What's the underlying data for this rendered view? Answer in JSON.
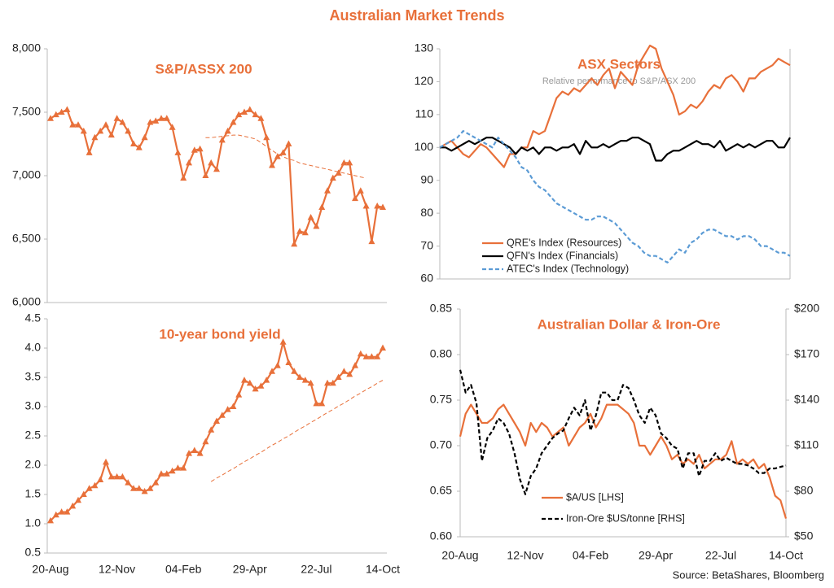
{
  "title": "Australian Market Trends",
  "source": "Source: BetaShares, Bloomberg",
  "chart_data": [
    {
      "type": "line",
      "title": "S&P/ASSX 200",
      "ylim": [
        6000,
        8000
      ],
      "yticks": [
        {
          "value": 6000,
          "label": "6,000"
        },
        {
          "value": 6500,
          "label": "6,500"
        },
        {
          "value": 7000,
          "label": "7,000"
        },
        {
          "value": 7500,
          "label": "7,500"
        },
        {
          "value": 8000,
          "label": "8,000"
        }
      ],
      "series": [
        {
          "color": "#e8703a",
          "marker": "triangle",
          "style": "solid",
          "values": [
            7450,
            7480,
            7500,
            7520,
            7400,
            7400,
            7350,
            7180,
            7300,
            7350,
            7400,
            7320,
            7450,
            7420,
            7350,
            7250,
            7220,
            7300,
            7420,
            7430,
            7450,
            7450,
            7380,
            7180,
            6980,
            7100,
            7200,
            7210,
            7000,
            7100,
            7050,
            7280,
            7350,
            7420,
            7480,
            7500,
            7520,
            7480,
            7450,
            7300,
            7080,
            7150,
            7180,
            7250,
            6460,
            6560,
            6550,
            6670,
            6600,
            6750,
            6880,
            6980,
            7020,
            7100,
            7100,
            6820,
            6880,
            6760,
            6480,
            6760,
            6750
          ]
        },
        {
          "color": "#e8703a",
          "style": "dashed",
          "values": [
            null,
            null,
            null,
            null,
            null,
            null,
            null,
            null,
            null,
            null,
            null,
            null,
            null,
            null,
            null,
            null,
            null,
            null,
            null,
            null,
            null,
            null,
            null,
            null,
            null,
            null,
            null,
            null,
            7300,
            7300,
            7305,
            7310,
            7315,
            7320,
            7320,
            7310,
            7300,
            7290,
            7260,
            7230,
            7200,
            7170,
            7150,
            7130,
            7120,
            7100,
            7090,
            7080,
            7070,
            7060,
            7050,
            7040,
            7030,
            7020,
            7010,
            7000,
            6990,
            6980,
            null,
            null,
            null
          ]
        }
      ]
    },
    {
      "type": "line",
      "title": "10-year bond yield",
      "categories": [
        "20-Aug",
        null,
        null,
        null,
        null,
        null,
        null,
        null,
        null,
        null,
        null,
        null,
        "12-Nov",
        null,
        null,
        null,
        null,
        null,
        null,
        null,
        null,
        null,
        null,
        null,
        "04-Feb",
        null,
        null,
        null,
        null,
        null,
        null,
        null,
        null,
        null,
        null,
        null,
        "29-Apr",
        null,
        null,
        null,
        null,
        null,
        null,
        null,
        null,
        null,
        null,
        null,
        "22-Jul",
        null,
        null,
        null,
        null,
        null,
        null,
        null,
        null,
        null,
        null,
        null,
        "14-Oct"
      ],
      "ylim": [
        0.5,
        4.5
      ],
      "yticks": [
        0.5,
        {
          "value": 1.0,
          "label": "1.0"
        },
        1.5,
        {
          "value": 2.0,
          "label": "2.0"
        },
        2.5,
        {
          "value": 3.0,
          "label": "3.0"
        },
        3.5,
        {
          "value": 4.0,
          "label": "4.0"
        },
        4.5
      ],
      "series": [
        {
          "color": "#e8703a",
          "marker": "triangle",
          "style": "solid",
          "values": [
            1.05,
            1.15,
            1.2,
            1.2,
            1.3,
            1.4,
            1.5,
            1.6,
            1.65,
            1.75,
            2.05,
            1.8,
            1.8,
            1.8,
            1.7,
            1.6,
            1.6,
            1.55,
            1.6,
            1.7,
            1.85,
            1.85,
            1.9,
            1.95,
            1.95,
            2.2,
            2.25,
            2.2,
            2.4,
            2.6,
            2.75,
            2.85,
            2.95,
            3.0,
            3.2,
            3.45,
            3.4,
            3.3,
            3.35,
            3.45,
            3.6,
            3.7,
            4.1,
            3.75,
            3.6,
            3.5,
            3.45,
            3.4,
            3.05,
            3.05,
            3.4,
            3.4,
            3.5,
            3.6,
            3.55,
            3.7,
            3.9,
            3.85,
            3.85,
            3.85,
            4.0
          ]
        },
        {
          "color": "#e8703a",
          "style": "dashed",
          "values": [
            null,
            null,
            null,
            null,
            null,
            null,
            null,
            null,
            null,
            null,
            null,
            null,
            null,
            null,
            null,
            null,
            null,
            null,
            null,
            null,
            null,
            null,
            null,
            null,
            null,
            null,
            null,
            null,
            null,
            1.72,
            1.78,
            1.83,
            1.89,
            1.94,
            2.0,
            2.06,
            2.11,
            2.17,
            2.22,
            2.28,
            2.34,
            2.39,
            2.45,
            2.5,
            2.56,
            2.62,
            2.67,
            2.73,
            2.78,
            2.84,
            2.9,
            2.95,
            3.01,
            3.06,
            3.12,
            3.18,
            3.23,
            3.29,
            3.34,
            3.4,
            3.45
          ]
        }
      ]
    },
    {
      "type": "line",
      "title": "ASX Sectors",
      "subtitle": "Relative performance to S&P/ASX 200",
      "legend": "lower left",
      "ylim": [
        60,
        130
      ],
      "yticks": [
        60,
        70,
        80,
        90,
        100,
        110,
        120,
        130
      ],
      "series": [
        {
          "name": "QRE's Index (Resources)",
          "color": "#e8703a",
          "style": "solid",
          "values": [
            100,
            101,
            102,
            100,
            98,
            97,
            99,
            101,
            100,
            98,
            96,
            94,
            98,
            98,
            100,
            100,
            105,
            104,
            105,
            110,
            115,
            117,
            116,
            118,
            117,
            119,
            121,
            119,
            122,
            124,
            118,
            123,
            121,
            119,
            125,
            128,
            131,
            130,
            124,
            120,
            116,
            110,
            111,
            113,
            112,
            114,
            117,
            119,
            118,
            121,
            122,
            120,
            117,
            121,
            121,
            123,
            124,
            125,
            127,
            126,
            125
          ]
        },
        {
          "name": "QFN's Index (Financials)",
          "color": "#000000",
          "style": "solid",
          "values": [
            100,
            100,
            99,
            100,
            101,
            102,
            101,
            102,
            103,
            103,
            102,
            101,
            100,
            98,
            100,
            99,
            100,
            98,
            100,
            100,
            99,
            100,
            100,
            101,
            98,
            102,
            100,
            100,
            101,
            100,
            101,
            102,
            102,
            103,
            103,
            102,
            101,
            96,
            96,
            98,
            99,
            99,
            100,
            101,
            102,
            101,
            101,
            100,
            102,
            99,
            100,
            101,
            100,
            101,
            100,
            101,
            102,
            102,
            100,
            100,
            103
          ]
        },
        {
          "name": "ATEC's Index (Technology)",
          "color": "#5b9bd5",
          "style": "dashed",
          "values": [
            100,
            101,
            102,
            103,
            105,
            104,
            103,
            102,
            101,
            100,
            103,
            101,
            99,
            97,
            94,
            93,
            90,
            88,
            87,
            85,
            83,
            82,
            81,
            80,
            79,
            78,
            78,
            79,
            79,
            78,
            77,
            75,
            73,
            71,
            70,
            68,
            67,
            67,
            66,
            65,
            67,
            69,
            68,
            71,
            72,
            74,
            75,
            75,
            74,
            73,
            73,
            72,
            73,
            73,
            72,
            70,
            70,
            69,
            68,
            68,
            67
          ]
        }
      ]
    },
    {
      "type": "line",
      "title": "Australian Dollar & Iron-Ore",
      "legend": "lower center",
      "categories": [
        "20-Aug",
        null,
        null,
        null,
        null,
        null,
        null,
        null,
        null,
        null,
        null,
        null,
        "12-Nov",
        null,
        null,
        null,
        null,
        null,
        null,
        null,
        null,
        null,
        null,
        null,
        "04-Feb",
        null,
        null,
        null,
        null,
        null,
        null,
        null,
        null,
        null,
        null,
        null,
        "29-Apr",
        null,
        null,
        null,
        null,
        null,
        null,
        null,
        null,
        null,
        null,
        null,
        "22-Jul",
        null,
        null,
        null,
        null,
        null,
        null,
        null,
        null,
        null,
        null,
        null,
        "14-Oct"
      ],
      "ylim": [
        0.6,
        0.85
      ],
      "yticks": [
        {
          "value": 0.6,
          "label": "0.60"
        },
        0.65,
        {
          "value": 0.7,
          "label": "0.70"
        },
        0.75,
        {
          "value": 0.8,
          "label": "0.80"
        },
        0.85
      ],
      "y2lim": [
        50,
        200
      ],
      "y2ticks": [
        {
          "value": 50,
          "label": "$50"
        },
        {
          "value": 80,
          "label": "$80"
        },
        {
          "value": 110,
          "label": "$110"
        },
        {
          "value": 140,
          "label": "$140"
        },
        {
          "value": 170,
          "label": "$170"
        },
        {
          "value": 200,
          "label": "$200"
        }
      ],
      "series": [
        {
          "name": "$A/US [LHS]",
          "color": "#e8703a",
          "style": "solid",
          "values": [
            0.71,
            0.735,
            0.745,
            0.735,
            0.725,
            0.725,
            0.73,
            0.74,
            0.745,
            0.735,
            0.725,
            0.715,
            0.7,
            0.725,
            0.715,
            0.725,
            0.72,
            0.71,
            0.715,
            0.72,
            0.7,
            0.71,
            0.72,
            0.725,
            0.735,
            0.72,
            0.73,
            0.745,
            0.745,
            0.745,
            0.74,
            0.735,
            0.725,
            0.7,
            0.7,
            0.69,
            0.7,
            0.71,
            0.7,
            0.685,
            0.69,
            0.68,
            0.685,
            0.68,
            0.69,
            0.675,
            0.68,
            0.685,
            0.685,
            0.69,
            0.705,
            0.68,
            0.685,
            0.68,
            0.685,
            0.675,
            0.68,
            0.665,
            0.645,
            0.64,
            0.62
          ]
        },
        {
          "name": "Iron-Ore $US/tonne [RHS]",
          "color": "#000000",
          "style": "dashed",
          "axis": "y2",
          "values": [
            160,
            145,
            150,
            138,
            100,
            115,
            120,
            128,
            125,
            118,
            105,
            88,
            78,
            90,
            95,
            105,
            110,
            115,
            118,
            120,
            128,
            135,
            130,
            140,
            120,
            130,
            145,
            145,
            140,
            140,
            150,
            148,
            140,
            130,
            125,
            135,
            130,
            118,
            115,
            110,
            108,
            95,
            105,
            105,
            90,
            100,
            100,
            105,
            100,
            102,
            100,
            98,
            98,
            97,
            95,
            92,
            92,
            95,
            95,
            96,
            97
          ]
        }
      ]
    }
  ]
}
